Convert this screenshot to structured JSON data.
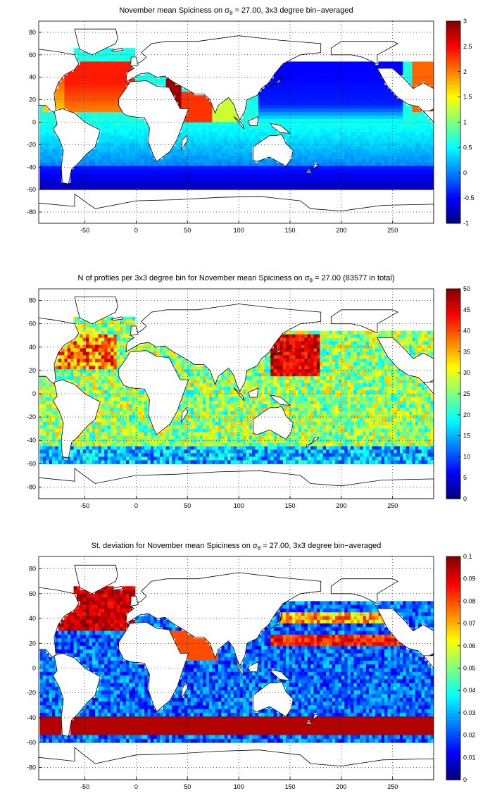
{
  "chart_data": [
    {
      "type": "heatmap",
      "title_pre": "November mean Spiciness on ",
      "title_sigma": "σ",
      "title_sub": "θ",
      "title_post": " = 27.00, 3x3 degree bin−averaged",
      "xlim": [
        -95,
        290
      ],
      "ylim": [
        -90,
        90
      ],
      "xticks": [
        -50,
        0,
        50,
        100,
        150,
        200,
        250
      ],
      "yticks": [
        -80,
        -60,
        -40,
        -20,
        0,
        20,
        40,
        60,
        80
      ],
      "clim": [
        -1,
        3
      ],
      "cticks": [
        -1,
        -0.5,
        0,
        0.5,
        1,
        1.5,
        2,
        2.5,
        3
      ],
      "colormap": "jet",
      "grid": true,
      "coastline": true,
      "field": "spiciness"
    },
    {
      "type": "heatmap",
      "title_pre": "N of profiles per 3x3 degree bin for November mean Spiciness on ",
      "title_sigma": "σ",
      "title_sub": "θ",
      "title_post": " = 27.00 (83577 in total)",
      "xlim": [
        -95,
        290
      ],
      "ylim": [
        -90,
        90
      ],
      "xticks": [
        -50,
        0,
        50,
        100,
        150,
        200,
        250
      ],
      "yticks": [
        -80,
        -60,
        -40,
        -20,
        0,
        20,
        40,
        60,
        80
      ],
      "clim": [
        0,
        50
      ],
      "cticks": [
        0,
        5,
        10,
        15,
        20,
        25,
        30,
        35,
        40,
        45,
        50
      ],
      "colormap": "jet",
      "grid": true,
      "coastline": true,
      "field": "count"
    },
    {
      "type": "heatmap",
      "title_pre": "St. deviation for November mean Spiciness on ",
      "title_sigma": "σ",
      "title_sub": "θ",
      "title_post": " = 27.00, 3x3 degree bin−averaged",
      "xlim": [
        -95,
        290
      ],
      "ylim": [
        -90,
        90
      ],
      "xticks": [
        -50,
        0,
        50,
        100,
        150,
        200,
        250
      ],
      "yticks": [
        -80,
        -60,
        -40,
        -20,
        0,
        20,
        40,
        60,
        80
      ],
      "clim": [
        0,
        0.1
      ],
      "cticks": [
        0,
        0.01,
        0.02,
        0.03,
        0.04,
        0.05,
        0.06,
        0.07,
        0.08,
        0.09,
        0.1
      ],
      "colormap": "jet",
      "grid": true,
      "coastline": true,
      "field": "stdev"
    }
  ]
}
